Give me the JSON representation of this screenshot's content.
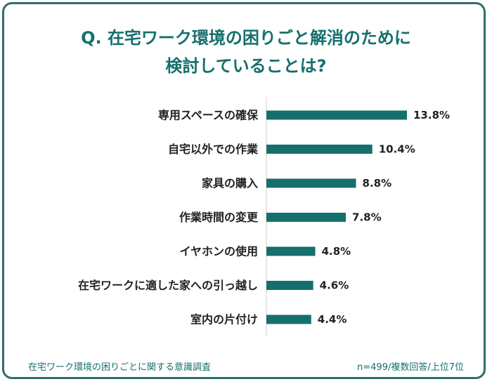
{
  "title_line1": "Q. 在宅ワーク環境の困りごと解消のために",
  "title_line2": "検討していることは?",
  "footer": {
    "source": "在宅ワーク環境の困りごとに関する意識調査",
    "note": "n=499/複数回答/上位7位"
  },
  "colors": {
    "bar": "#15706d",
    "title": "#15706d",
    "frame": "#2e6f6b",
    "axis": "#cccccc",
    "label": "#222222"
  },
  "chart_data": {
    "type": "bar",
    "orientation": "horizontal",
    "categories": [
      "専用スペースの確保",
      "自宅以外での作業",
      "家具の購入",
      "作業時間の変更",
      "イヤホンの使用",
      "在宅ワークに適した家への引っ越し",
      "室内の片付け"
    ],
    "values": [
      13.8,
      10.4,
      8.8,
      7.8,
      4.8,
      4.6,
      4.4
    ],
    "value_labels": [
      "13.8%",
      "10.4%",
      "8.8%",
      "7.8%",
      "4.8%",
      "4.6%",
      "4.4%"
    ],
    "unit": "%",
    "xlim": [
      0,
      13.8
    ],
    "grid": false,
    "legend": "none"
  }
}
